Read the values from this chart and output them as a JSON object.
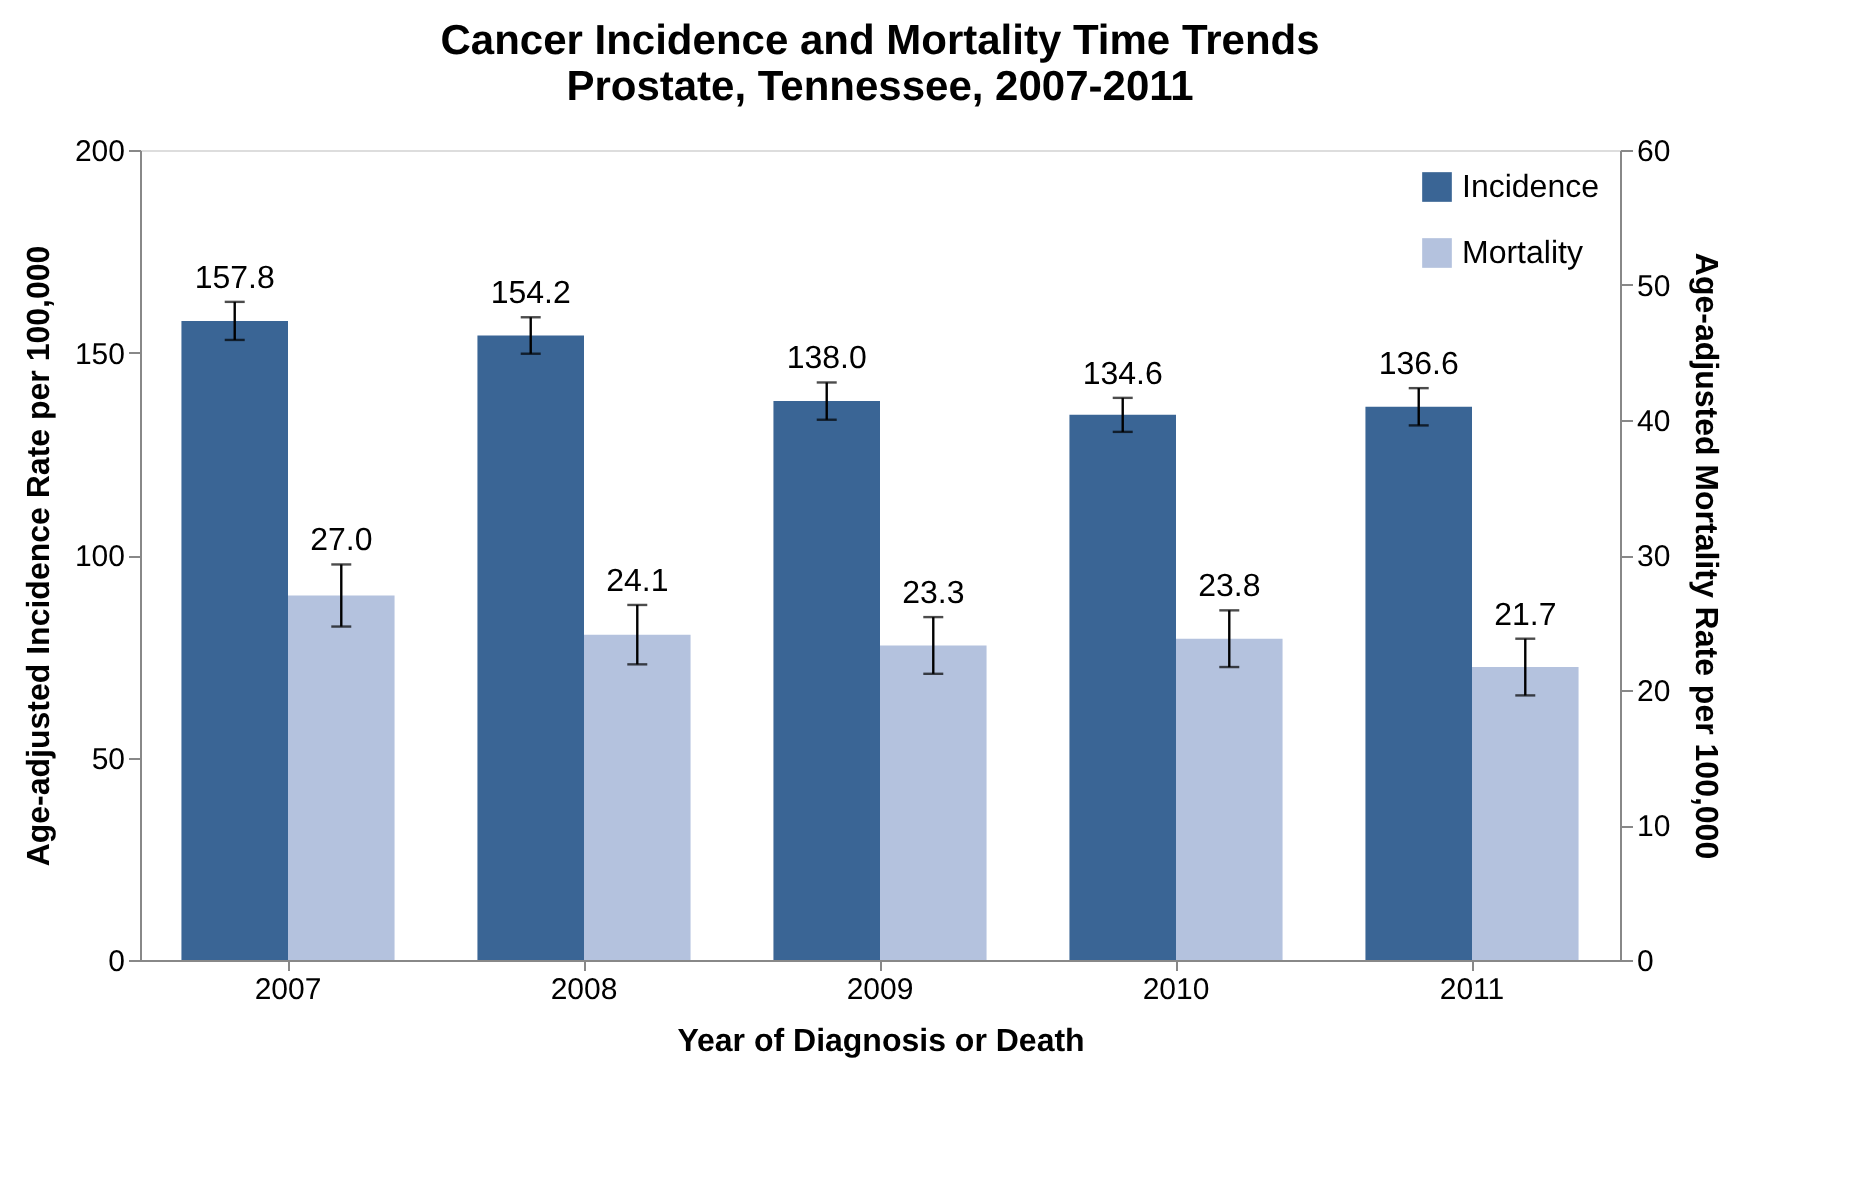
{
  "chart_data": {
    "type": "bar",
    "title": "Cancer Incidence and Mortality Time Trends\nProstate, Tennessee, 2007-2011",
    "xlabel": "Year of Diagnosis or Death",
    "ylabel": "Age-adjusted Incidence Rate per 100,000",
    "y2label": "Age-adjusted Mortality Rate per 100,000",
    "categories": [
      "2007",
      "2008",
      "2009",
      "2010",
      "2011"
    ],
    "series": [
      {
        "name": "Incidence",
        "color": "#3a6595",
        "values": [
          157.8,
          154.2,
          138.0,
          134.6,
          136.6
        ],
        "value_labels": [
          "157.8",
          "154.2",
          "138.0",
          "134.6",
          "136.6"
        ],
        "errors": [
          4.7,
          4.5,
          4.6,
          4.2,
          4.6
        ]
      },
      {
        "name": "Mortality",
        "color": "#b4c2de",
        "axis": "y2",
        "values": [
          27.0,
          24.1,
          23.3,
          23.8,
          21.7
        ],
        "value_labels": [
          "27.0",
          "24.1",
          "23.3",
          "23.8",
          "21.7"
        ],
        "errors": [
          2.3,
          2.2,
          2.1,
          2.1,
          2.1
        ]
      }
    ],
    "ylim": [
      0,
      200
    ],
    "yticks": [
      0,
      50,
      100,
      150,
      200
    ],
    "y2lim": [
      0,
      60
    ],
    "y2ticks": [
      0,
      10,
      20,
      30,
      40,
      50,
      60
    ],
    "grid": false,
    "legend": "top right"
  }
}
